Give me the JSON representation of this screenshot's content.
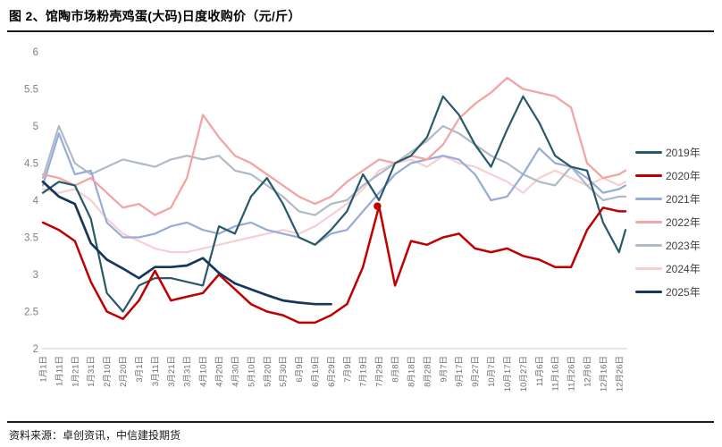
{
  "title": "图 2、馆陶市场粉壳鸡蛋(大码)日度收购价（元/斤）",
  "source": "资料来源：卓创资讯，中信建投期货",
  "chart_data": {
    "type": "line",
    "title": "馆陶市场粉壳鸡蛋(大码)日度收购价",
    "unit": "元/斤",
    "ylim": [
      2,
      6
    ],
    "ytick_labels": [
      "6",
      "5.5",
      "5",
      "4.5",
      "4",
      "3.5",
      "3",
      "2.5",
      "2"
    ],
    "grid": false,
    "legend_position": "right",
    "x_tick_labels": [
      "1月1日",
      "1月11日",
      "1月21日",
      "1月31日",
      "2月10日",
      "2月20日",
      "3月1日",
      "3月11日",
      "3月21日",
      "3月31日",
      "4月10日",
      "4月20日",
      "4月30日",
      "5月10日",
      "5月20日",
      "5月30日",
      "6月9日",
      "6月19日",
      "6月29日",
      "7月9日",
      "7月19日",
      "7月29日",
      "8月8日",
      "8月18日",
      "8月28日",
      "9月7日",
      "9月17日",
      "9月27日",
      "10月7日",
      "10月17日",
      "10月27日",
      "11月6日",
      "11月16日",
      "11月26日",
      "12月6日",
      "12月16日",
      "12月26日"
    ],
    "x_days": [
      0,
      10,
      20,
      30,
      40,
      50,
      60,
      70,
      80,
      90,
      100,
      110,
      120,
      130,
      140,
      150,
      160,
      170,
      180,
      190,
      200,
      210,
      220,
      230,
      240,
      250,
      260,
      270,
      280,
      290,
      300,
      310,
      320,
      330,
      340,
      350,
      360,
      364
    ],
    "series": [
      {
        "name": "2019年",
        "color": "#28596B",
        "width": 2.2,
        "values": [
          4.1,
          4.25,
          4.2,
          3.75,
          2.75,
          2.5,
          2.85,
          2.95,
          2.95,
          2.9,
          2.85,
          3.65,
          3.55,
          4.05,
          4.3,
          3.95,
          3.5,
          3.4,
          3.6,
          3.85,
          4.35,
          4.0,
          4.5,
          4.6,
          4.85,
          5.4,
          5.15,
          4.75,
          4.45,
          4.95,
          5.4,
          5.05,
          4.6,
          4.45,
          4.4,
          3.7,
          3.3,
          3.6
        ]
      },
      {
        "name": "2020年",
        "color": "#C00000",
        "width": 2.5,
        "values": [
          3.7,
          3.6,
          3.45,
          2.9,
          2.5,
          2.4,
          2.65,
          3.05,
          2.65,
          2.7,
          2.75,
          3.0,
          2.8,
          2.6,
          2.5,
          2.45,
          2.35,
          2.35,
          2.45,
          2.6,
          3.1,
          3.92,
          2.85,
          3.45,
          3.4,
          3.5,
          3.55,
          3.35,
          3.3,
          3.35,
          3.25,
          3.2,
          3.1,
          3.1,
          3.6,
          3.9,
          3.85,
          3.85
        ]
      },
      {
        "name": "2021年",
        "color": "#97ABD8",
        "width": 2.2,
        "values": [
          4.2,
          4.9,
          4.35,
          4.4,
          3.7,
          3.5,
          3.5,
          3.55,
          3.65,
          3.7,
          3.6,
          3.55,
          3.65,
          3.7,
          3.6,
          3.55,
          3.5,
          3.4,
          3.55,
          3.6,
          3.85,
          4.1,
          4.35,
          4.5,
          4.55,
          4.6,
          4.55,
          4.35,
          4.0,
          4.05,
          4.35,
          4.7,
          4.5,
          4.45,
          4.3,
          4.1,
          4.15,
          4.2
        ]
      },
      {
        "name": "2022年",
        "color": "#F2A5A5",
        "width": 2.3,
        "values": [
          4.35,
          4.3,
          4.2,
          4.3,
          4.1,
          3.9,
          3.95,
          3.8,
          3.9,
          4.3,
          5.15,
          4.85,
          4.6,
          4.5,
          4.35,
          4.2,
          4.05,
          3.95,
          4.05,
          4.25,
          4.4,
          4.55,
          4.5,
          4.6,
          4.55,
          4.75,
          5.1,
          5.3,
          5.45,
          5.65,
          5.5,
          5.45,
          5.4,
          5.25,
          4.5,
          4.3,
          4.35,
          4.4
        ]
      },
      {
        "name": "2023年",
        "color": "#AFBAC6",
        "width": 2.2,
        "values": [
          4.3,
          5.0,
          4.5,
          4.35,
          4.45,
          4.55,
          4.5,
          4.45,
          4.55,
          4.6,
          4.55,
          4.6,
          4.4,
          4.35,
          4.2,
          4.05,
          3.85,
          3.8,
          3.95,
          4.0,
          4.2,
          4.35,
          4.5,
          4.65,
          4.8,
          5.0,
          4.9,
          4.75,
          4.6,
          4.5,
          4.35,
          4.25,
          4.2,
          4.45,
          4.2,
          4.0,
          4.05,
          4.05
        ]
      },
      {
        "name": "2024年",
        "color": "#F7CFD2",
        "width": 2.2,
        "values": [
          4.15,
          4.1,
          4.15,
          4.0,
          3.75,
          3.55,
          3.45,
          3.35,
          3.3,
          3.3,
          3.35,
          3.4,
          3.45,
          3.5,
          3.55,
          3.6,
          3.55,
          3.65,
          3.8,
          3.95,
          4.15,
          4.4,
          4.5,
          4.55,
          4.45,
          4.6,
          4.5,
          4.45,
          4.35,
          4.25,
          4.1,
          4.3,
          4.4,
          4.3,
          4.2,
          4.3,
          4.2,
          4.25
        ]
      },
      {
        "name": "2025年",
        "color": "#16365C",
        "width": 2.7,
        "values": [
          4.25,
          4.05,
          3.95,
          3.42,
          3.2,
          3.08,
          2.95,
          3.1,
          3.1,
          3.12,
          3.22,
          3.02,
          2.88,
          2.8,
          2.72,
          2.65,
          2.62,
          2.6,
          2.6,
          null,
          null,
          null,
          null,
          null,
          null,
          null,
          null,
          null,
          null,
          null,
          null,
          null,
          null,
          null,
          null,
          null,
          null,
          null
        ]
      }
    ],
    "marker": {
      "day": 209,
      "value": 3.92,
      "color": "#C00000"
    }
  }
}
